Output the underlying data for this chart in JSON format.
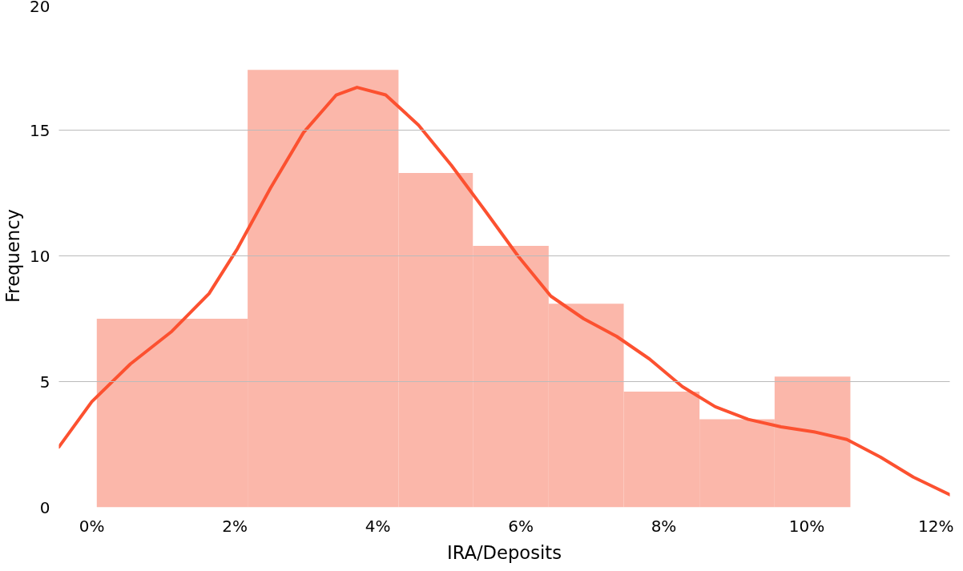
{
  "chart_data": {
    "type": "histogram",
    "xlabel": "IRA/Deposits",
    "ylabel": "Frequency",
    "bins": [
      0.07,
      2.18,
      4.29,
      5.33,
      6.39,
      7.44,
      8.5,
      9.55,
      10.61
    ],
    "values": [
      7.5,
      17.4,
      13.3,
      10.4,
      8.1,
      4.6,
      3.5,
      5.2
    ],
    "color": "#fbb7aa",
    "series": [
      {
        "type": "line",
        "color": "#fc5130",
        "x": [
          -0.46,
          0,
          0.54,
          1.12,
          1.64,
          2.04,
          2.5,
          2.96,
          3.42,
          3.71,
          4.11,
          4.57,
          5.03,
          5.5,
          5.96,
          6.42,
          6.88,
          7.34,
          7.8,
          8.26,
          8.72,
          9.18,
          9.64,
          10.1,
          10.56,
          11.03,
          11.49,
          12
        ],
        "values": [
          2.4,
          4.2,
          5.7,
          7.0,
          8.5,
          10.3,
          12.7,
          14.9,
          16.4,
          16.7,
          16.4,
          15.2,
          13.6,
          11.8,
          10.0,
          8.4,
          7.5,
          6.8,
          5.9,
          4.8,
          4.0,
          3.5,
          3.2,
          3.0,
          2.7,
          2.0,
          1.2,
          0.5
        ]
      }
    ],
    "xlim": [
      -0.46,
      12
    ],
    "ylim": [
      0,
      20
    ],
    "xticks": [
      {
        "value": 0,
        "label": "0%"
      },
      {
        "value": 2,
        "label": "2%"
      },
      {
        "value": 4,
        "label": "4%"
      },
      {
        "value": 6,
        "label": "6%"
      },
      {
        "value": 8,
        "label": "8%"
      },
      {
        "value": 10,
        "label": "10%"
      },
      {
        "value": 12,
        "label": "12%"
      }
    ],
    "yticks": [
      0,
      5,
      10,
      15,
      20
    ],
    "grid": "y",
    "line_style": "solid"
  }
}
